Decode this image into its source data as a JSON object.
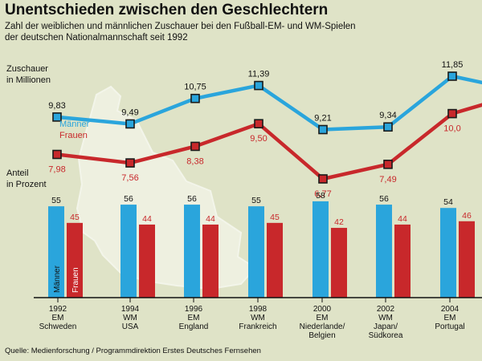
{
  "title": "Unentschieden zwischen den Geschlechtern",
  "subtitle_lines": [
    "Zahl der weiblichen und männlichen Zuschauer bei den Fußball-EM- und WM-Spielen",
    "der deutschen Nationalmannschaft seit 1992"
  ],
  "source": "Quelle: Medienforschung / Programmdirektion Erstes Deutsches Fernsehen",
  "colors": {
    "men": "#2aa5dc",
    "women": "#c8282b",
    "background": "#dfe3c7"
  },
  "chart_data": [
    {
      "type": "line",
      "ylabel_lines": [
        "Zuschauer",
        "in Millionen"
      ],
      "series": [
        {
          "name": "Männer",
          "values": [
            9.83,
            9.49,
            10.75,
            11.39,
            9.21,
            9.34,
            11.85,
            null
          ],
          "labels": [
            "9,83",
            "9,49",
            "10,75",
            "11,39",
            "9,21",
            "9,34",
            "11,85",
            ""
          ]
        },
        {
          "name": "Frauen",
          "values": [
            7.98,
            7.56,
            8.38,
            9.5,
            6.77,
            7.49,
            10.0,
            null
          ],
          "labels": [
            "7,98",
            "7,56",
            "8,38",
            "9,50",
            "6,77",
            "7,49",
            "10,0",
            ""
          ]
        }
      ]
    },
    {
      "type": "bar",
      "ylabel_lines": [
        "Anteil",
        "in Prozent"
      ],
      "categories": [
        [
          "1992",
          "EM",
          "Schweden"
        ],
        [
          "1994",
          "WM",
          "USA"
        ],
        [
          "1996",
          "EM",
          "England"
        ],
        [
          "1998",
          "WM",
          "Frankreich"
        ],
        [
          "2000",
          "EM",
          "Niederlande/",
          "Belgien"
        ],
        [
          "2002",
          "WM",
          "Japan/",
          "Südkorea"
        ],
        [
          "2004",
          "EM",
          "Portugal"
        ]
      ],
      "series": [
        {
          "name": "Männer",
          "values": [
            55,
            56,
            56,
            55,
            58,
            56,
            54
          ]
        },
        {
          "name": "Frauen",
          "values": [
            45,
            44,
            44,
            45,
            42,
            44,
            46
          ]
        }
      ]
    }
  ]
}
